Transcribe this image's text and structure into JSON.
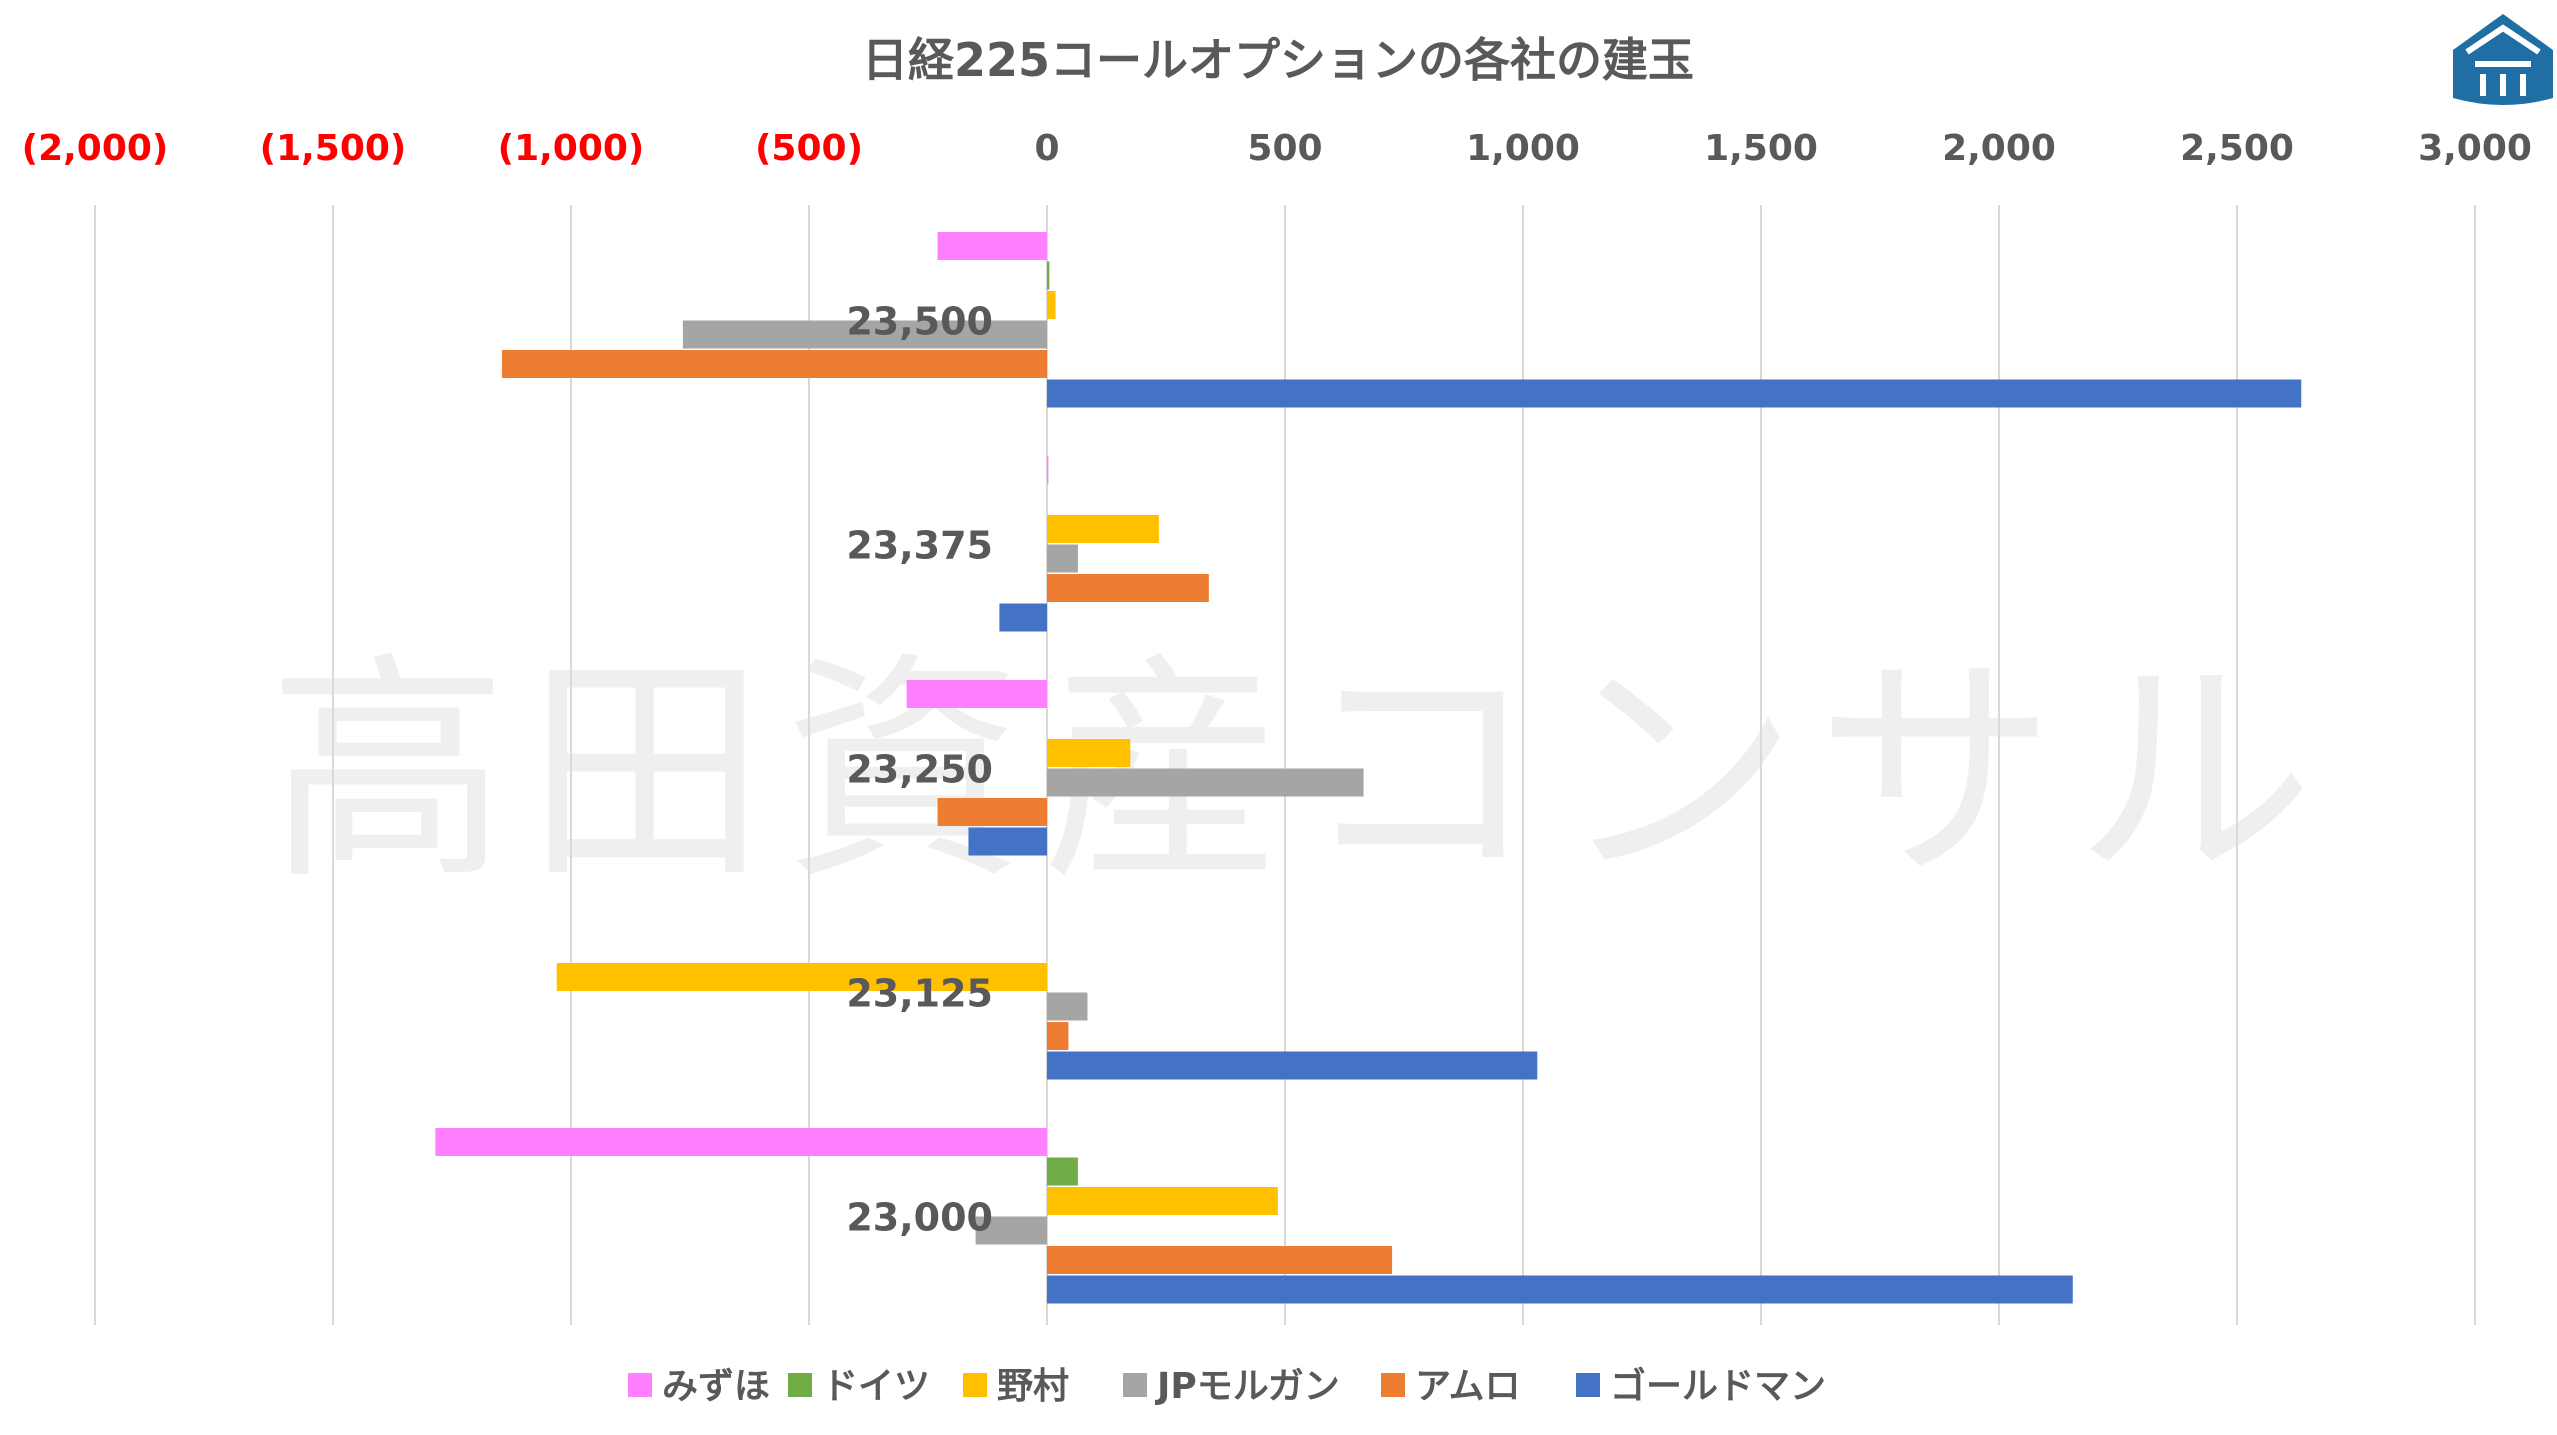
{
  "chart_data": {
    "type": "bar",
    "orientation": "horizontal",
    "title": "日経225コールオプションの各社の建玉",
    "watermark": "高田資産コンサル",
    "xlim": [
      -2000,
      3000
    ],
    "xticks": [
      {
        "value": -2000,
        "label": "(2,000)"
      },
      {
        "value": -1500,
        "label": "(1,500)"
      },
      {
        "value": -1000,
        "label": "(1,000)"
      },
      {
        "value": -500,
        "label": "(500)"
      },
      {
        "value": 0,
        "label": "0"
      },
      {
        "value": 500,
        "label": "500"
      },
      {
        "value": 1000,
        "label": "1,000"
      },
      {
        "value": 1500,
        "label": "1,500"
      },
      {
        "value": 2000,
        "label": "2,000"
      },
      {
        "value": 2500,
        "label": "2,500"
      },
      {
        "value": 3000,
        "label": "3,000"
      }
    ],
    "negative_tick_color": "#ff0000",
    "tick_color": "#595959",
    "grid": true,
    "legend_position": "bottom",
    "categories": [
      "23,500",
      "23,375",
      "23,250",
      "23,125",
      "23,000"
    ],
    "series": [
      {
        "name": "みずほ",
        "color": "#ff80ff",
        "values": [
          -230,
          3,
          -295,
          0,
          -1285
        ]
      },
      {
        "name": "ドイツ",
        "color": "#70ad47",
        "values": [
          5,
          0,
          0,
          0,
          65
        ]
      },
      {
        "name": "野村",
        "color": "#ffc000",
        "values": [
          18,
          235,
          175,
          -1030,
          485
        ]
      },
      {
        "name": "JPモルガン",
        "color": "#a5a5a5",
        "values": [
          -765,
          65,
          665,
          85,
          -150
        ]
      },
      {
        "name": "アムロ",
        "color": "#ed7d31",
        "values": [
          -1145,
          340,
          -230,
          45,
          725
        ]
      },
      {
        "name": "ゴールドマン",
        "color": "#4472c4",
        "values": [
          2635,
          -100,
          -165,
          1030,
          2155
        ]
      }
    ]
  }
}
